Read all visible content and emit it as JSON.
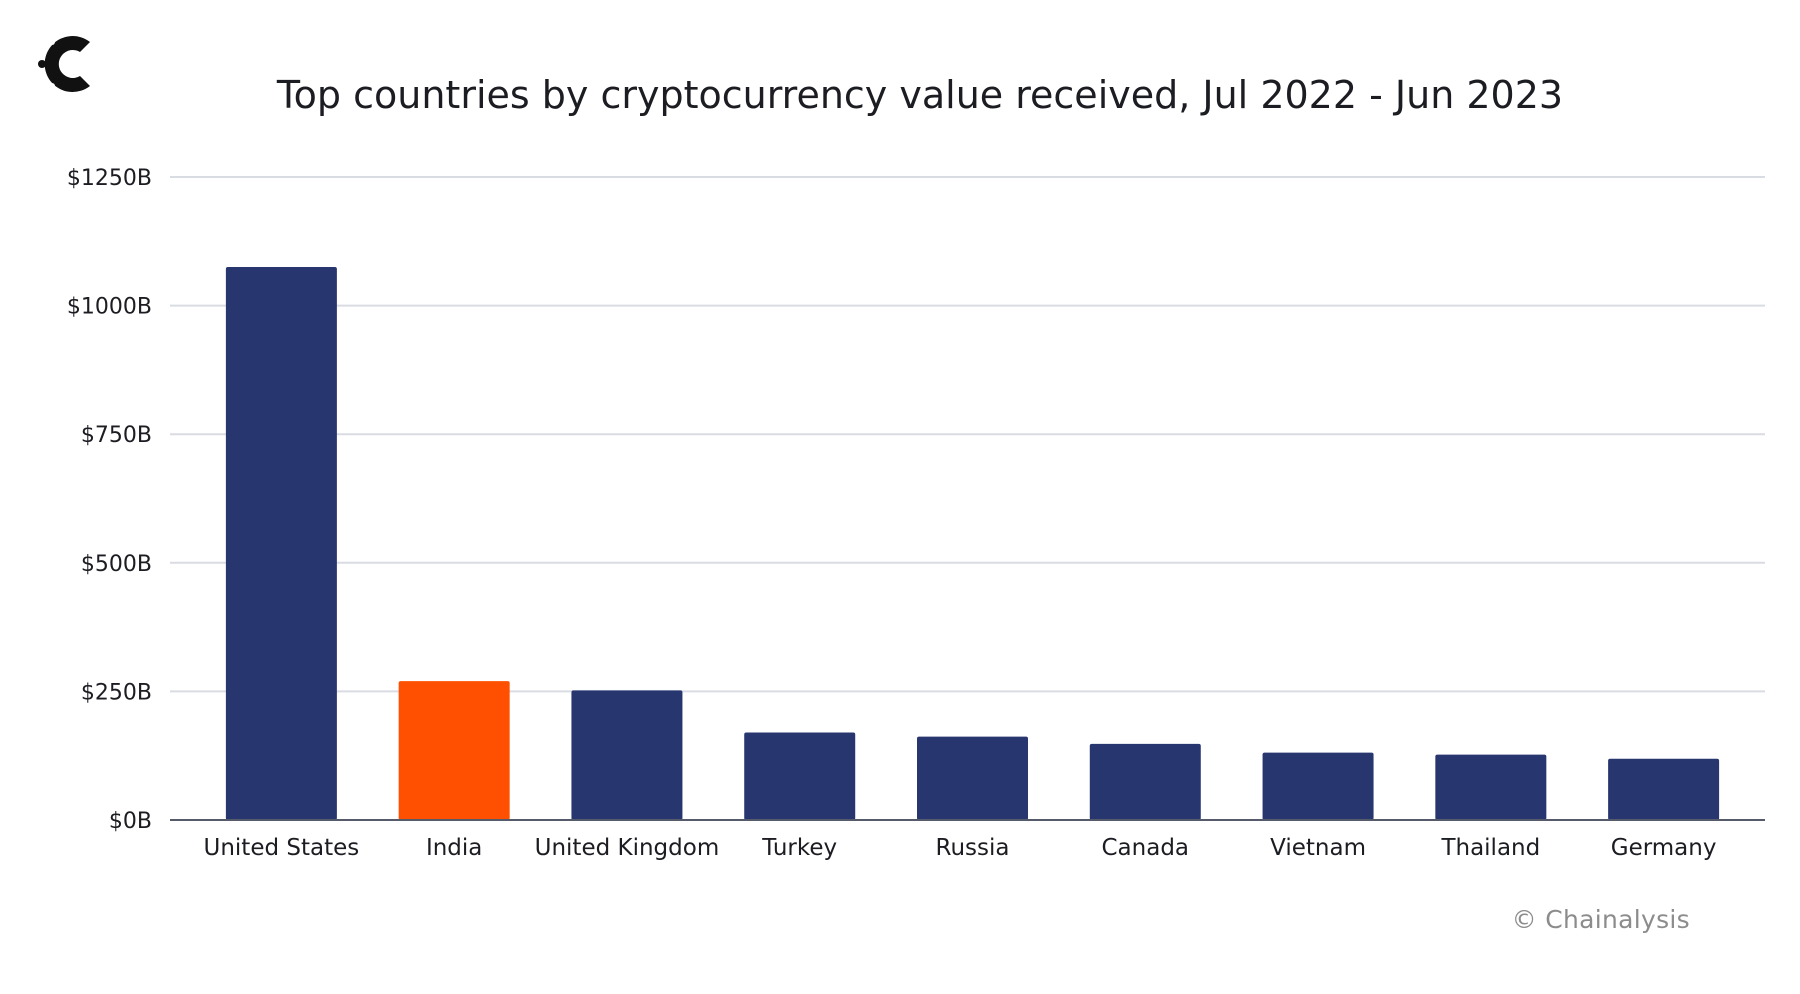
{
  "chart_data": {
    "type": "bar",
    "title": "Top countries by cryptocurrency value received, Jul 2022 - Jun 2023",
    "xlabel": "",
    "ylabel": "",
    "categories": [
      "United States",
      "India",
      "United Kingdom",
      "Turkey",
      "Russia",
      "Canada",
      "Vietnam",
      "Thailand",
      "Germany"
    ],
    "values": [
      1075,
      270,
      252,
      170,
      162,
      148,
      131,
      127,
      119
    ],
    "highlight_index": 1,
    "colors": {
      "default": "#283670",
      "highlight": "#fe5000",
      "grid": "#d9dce3",
      "axis": "#555b6a",
      "text": "#1c1d22"
    },
    "ylim": [
      0,
      1250
    ],
    "yticks": [
      0,
      250,
      500,
      750,
      1000,
      1250
    ],
    "ytick_labels": [
      "$0B",
      "$250B",
      "$500B",
      "$750B",
      "$1000B",
      "$1250B"
    ],
    "grid": true,
    "legend": "none"
  },
  "branding": {
    "logo_icon": "chainalysis-logo-icon",
    "watermark": "© Chainalysis"
  }
}
